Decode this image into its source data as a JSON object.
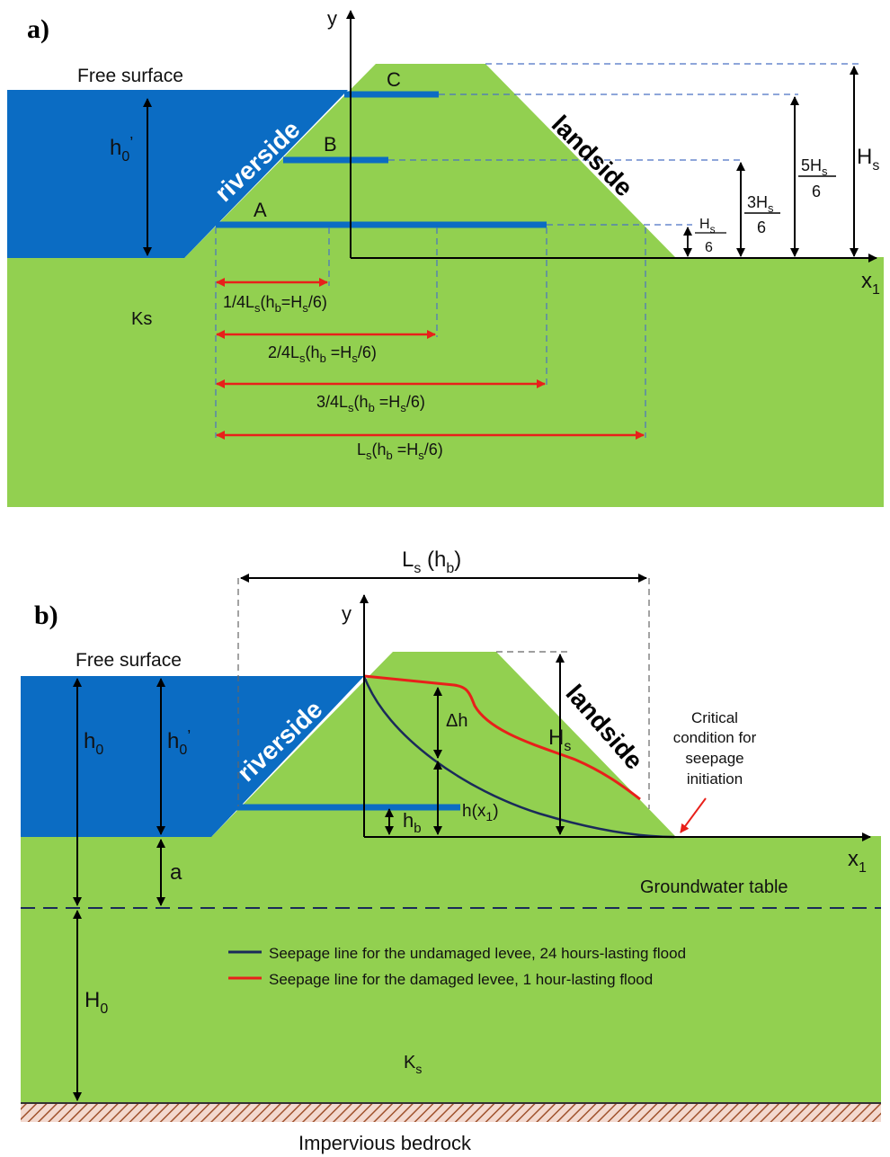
{
  "panel_a": {
    "tag": "a)",
    "free_surface": "Free surface",
    "riverside": "riverside",
    "landside": "landside",
    "y_axis": "y",
    "x_axis": "x",
    "x_sub": "1",
    "h0_prime": "h",
    "h0_prime_sub": "0",
    "h0_prime_tick": "’",
    "ks": "Ks",
    "levels": [
      {
        "name": "C",
        "num": "5H",
        "sub": "s",
        "den": "6"
      },
      {
        "name": "B",
        "num": "3H",
        "sub": "s",
        "den": "6"
      },
      {
        "name": "A",
        "num": "H",
        "sub": "s",
        "den": "6"
      }
    ],
    "hs": "H",
    "hs_sub": "s",
    "lengths": [
      {
        "pre": "1/4L",
        "sub": "s",
        "mid": "(h",
        "sub2": "b",
        "post": "=H",
        "sub3": "s",
        "end": "/6)"
      },
      {
        "pre": "2/4L",
        "sub": "s",
        "mid": "(h",
        "sub2": "b",
        "post": " =H",
        "sub3": "s",
        "end": "/6)"
      },
      {
        "pre": "3/4L",
        "sub": "s",
        "mid": "(h",
        "sub2": "b",
        "post": " =H",
        "sub3": "s",
        "end": "/6)"
      },
      {
        "pre": "L",
        "sub": "s",
        "mid": "(h",
        "sub2": "b",
        "post": " =H",
        "sub3": "s",
        "end": "/6)"
      }
    ]
  },
  "panel_b": {
    "tag": "b)",
    "free_surface": "Free surface",
    "riverside": "riverside",
    "landside": "landside",
    "y_axis": "y",
    "x_axis": "x",
    "x_sub": "1",
    "ls_label": "L",
    "ls_sub": "s",
    "ls_rest": " (h",
    "ls_sub2": "b",
    "ls_end": ")",
    "h0": "h",
    "h0_sub": "0",
    "h0_prime": "h",
    "h0_prime_sub": "0",
    "h0_prime_tick": "’",
    "a": "a",
    "H0": "H",
    "H0_sub": "0",
    "delta_h": "Δh",
    "hs": "H",
    "hs_sub": "s",
    "hx": "h(x",
    "hx_sub": "1",
    "hx_end": ")",
    "hb": "h",
    "hb_sub": "b",
    "critical": [
      "Critical",
      "condition for",
      "seepage",
      "initiation"
    ],
    "groundwater": "Groundwater table",
    "ks": "K",
    "ks_sub": "s",
    "bedrock": "Impervious bedrock",
    "legend": [
      {
        "label": "Seepage line for the undamaged levee, 24 hours-lasting flood",
        "color": "#1a2a5a"
      },
      {
        "label": "Seepage line for the damaged levee, 1 hour-lasting flood",
        "color": "#e8201a"
      }
    ]
  },
  "colors": {
    "water": "#0b6cc3",
    "soil": "#92d050",
    "undamaged": "#1a2a5a",
    "damaged": "#e8201a",
    "dims": "#e8201a",
    "dashed": "#4a72c4"
  }
}
